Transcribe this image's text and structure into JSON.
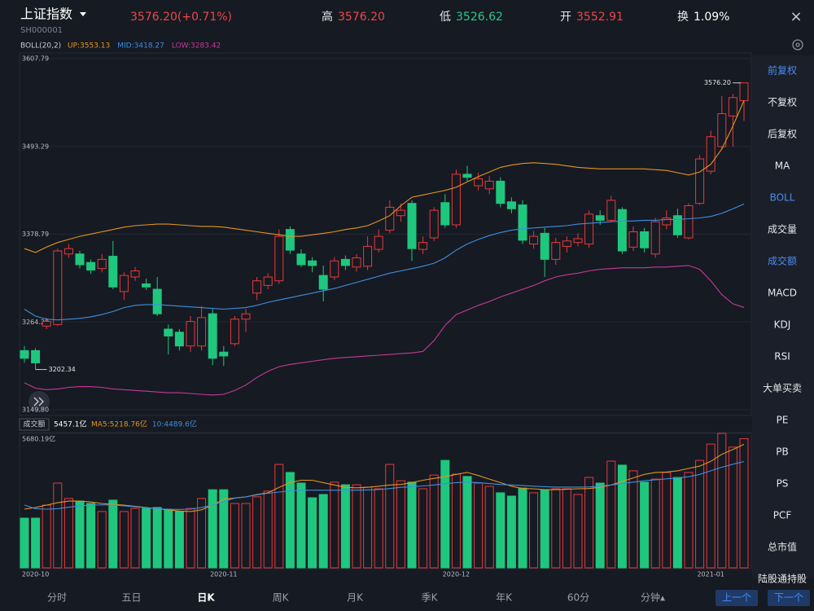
{
  "header": {
    "title": "上证指数",
    "code": "SH000001",
    "price": "3576.20(+0.71%)",
    "price_color": "#f0454a",
    "stats": [
      {
        "label": "高",
        "value": "3576.20",
        "color": "#f0454a"
      },
      {
        "label": "低",
        "value": "3526.62",
        "color": "#25c98a"
      },
      {
        "label": "开",
        "value": "3552.91",
        "color": "#f0454a"
      },
      {
        "label": "换",
        "value": "1.09%",
        "color": "#ffffff"
      }
    ]
  },
  "chart_data": [
    {
      "type": "candlestick",
      "indicator": "BOLL(20,2)",
      "up_color": "#e8393d",
      "down_color": "#1fc77e",
      "open": [
        3227,
        3227,
        3259,
        3261,
        3353,
        3353,
        3342,
        3334,
        3350,
        3304,
        3323,
        3314,
        3307,
        3255,
        3251,
        3233,
        3233,
        3275,
        3225,
        3236,
        3268,
        3302,
        3312,
        3318,
        3385,
        3353,
        3344,
        3325,
        3323,
        3346,
        3336,
        3337,
        3359,
        3384,
        3403,
        3419,
        3359,
        3374,
        3420,
        3391,
        3457,
        3442,
        3438,
        3448,
        3421,
        3417,
        3366,
        3380,
        3346,
        3363,
        3368,
        3366,
        3403,
        3397,
        3411,
        3362,
        3382,
        3353,
        3391,
        3403,
        3374,
        3419,
        3461,
        3493,
        3533,
        3552.91
      ],
      "high": [
        3233,
        3230,
        3270,
        3360,
        3366,
        3357,
        3346,
        3353,
        3370,
        3329,
        3336,
        3321,
        3323,
        3261,
        3255,
        3272,
        3285,
        3281,
        3233,
        3272,
        3281,
        3323,
        3328,
        3385,
        3389,
        3359,
        3349,
        3338,
        3349,
        3351,
        3353,
        3376,
        3385,
        3423,
        3419,
        3423,
        3376,
        3414,
        3431,
        3463,
        3468,
        3459,
        3455,
        3453,
        3427,
        3423,
        3383,
        3387,
        3374,
        3376,
        3380,
        3410,
        3410,
        3429,
        3414,
        3389,
        3387,
        3400,
        3410,
        3412,
        3419,
        3482,
        3514,
        3559,
        3562,
        3576.2
      ],
      "low": [
        3211,
        3202.34,
        3255,
        3259,
        3348,
        3334,
        3327,
        3329,
        3307,
        3293,
        3318,
        3306,
        3272,
        3222,
        3227,
        3225,
        3227,
        3208,
        3207,
        3233,
        3251,
        3293,
        3307,
        3314,
        3353,
        3336,
        3329,
        3291,
        3319,
        3332,
        3330,
        3332,
        3355,
        3380,
        3395,
        3344,
        3353,
        3370,
        3387,
        3387,
        3448,
        3436,
        3431,
        3414,
        3406,
        3366,
        3360,
        3323,
        3339,
        3355,
        3363,
        3361,
        3391,
        3395,
        3353,
        3357,
        3355,
        3348,
        3385,
        3374,
        3372,
        3417,
        3457,
        3489,
        3493,
        3526.62
      ],
      "close": [
        3217,
        3211,
        3265,
        3357,
        3360,
        3339,
        3332,
        3346,
        3310,
        3325,
        3331,
        3310,
        3275,
        3246,
        3233,
        3265,
        3270,
        3217,
        3220,
        3268,
        3275,
        3318,
        3323,
        3376,
        3358,
        3339,
        3338,
        3307,
        3344,
        3338,
        3348,
        3363,
        3376,
        3414,
        3410,
        3360,
        3368,
        3410,
        3391,
        3457,
        3453,
        3451,
        3448,
        3419,
        3412,
        3371,
        3376,
        3346,
        3368,
        3370,
        3373,
        3405,
        3397,
        3423,
        3357,
        3382,
        3361,
        3395,
        3400,
        3378,
        3416,
        3477,
        3506,
        3536,
        3557,
        3576.2
      ],
      "series": [
        {
          "label": "UP:3553.13",
          "color": "#e3951f",
          "values": [
            3360,
            3355,
            3362,
            3368,
            3372,
            3376,
            3379,
            3382,
            3385,
            3388,
            3390,
            3391,
            3392,
            3392,
            3391,
            3390,
            3389,
            3389,
            3388,
            3386,
            3384,
            3382,
            3380,
            3378,
            3376,
            3376,
            3378,
            3380,
            3382,
            3385,
            3387,
            3390,
            3396,
            3403,
            3416,
            3427,
            3430,
            3433,
            3436,
            3440,
            3447,
            3454,
            3460,
            3466,
            3469,
            3471,
            3472,
            3471,
            3470,
            3468,
            3466,
            3465,
            3464,
            3464,
            3464,
            3464,
            3464,
            3463,
            3462,
            3459,
            3456,
            3460,
            3470,
            3490,
            3520,
            3553.13
          ]
        },
        {
          "label": "MID:3418.27",
          "color": "#3d8fe0",
          "values": [
            3281,
            3272,
            3268,
            3267,
            3268,
            3269,
            3271,
            3274,
            3278,
            3283,
            3286,
            3287,
            3287,
            3286,
            3285,
            3284,
            3283,
            3282,
            3281,
            3282,
            3283,
            3286,
            3290,
            3293,
            3296,
            3299,
            3302,
            3305,
            3308,
            3312,
            3316,
            3320,
            3324,
            3328,
            3331,
            3334,
            3337,
            3341,
            3348,
            3358,
            3366,
            3372,
            3377,
            3381,
            3384,
            3386,
            3387,
            3388,
            3389,
            3390,
            3392,
            3393,
            3394,
            3395,
            3396,
            3396,
            3397,
            3397,
            3398,
            3398,
            3399,
            3400,
            3402,
            3406,
            3412,
            3418.27
          ]
        },
        {
          "label": "LOW:3283.42",
          "color": "#c63a9a",
          "values": [
            3185,
            3178,
            3176,
            3177,
            3179,
            3180,
            3180,
            3179,
            3177,
            3176,
            3175,
            3174,
            3173,
            3172,
            3172,
            3171,
            3170,
            3169,
            3170,
            3175,
            3182,
            3192,
            3200,
            3206,
            3209,
            3211,
            3213,
            3215,
            3217,
            3218,
            3219,
            3220,
            3221,
            3222,
            3223,
            3224,
            3226,
            3240,
            3260,
            3274,
            3280,
            3286,
            3291,
            3297,
            3302,
            3307,
            3312,
            3318,
            3323,
            3326,
            3328,
            3331,
            3333,
            3334,
            3335,
            3335,
            3335,
            3336,
            3336,
            3337,
            3338,
            3333,
            3318,
            3300,
            3288,
            3283.42
          ]
        }
      ],
      "ylim": [
        3149.8,
        3607.79
      ],
      "yticks": [
        3607.79,
        3493.29,
        3378.79,
        3264.29,
        {
          "value": 3149.8,
          "label": "3149.80"
        }
      ],
      "grid": true,
      "annotations": {
        "high_label": "3576.20",
        "low_label": "3202.34"
      }
    },
    {
      "type": "bar",
      "title": "成交额",
      "value_label": "5457.1亿",
      "categories": [
        null,
        "2020-10",
        null,
        null,
        null,
        null,
        null,
        null,
        null,
        null,
        null,
        null,
        null,
        null,
        null,
        null,
        null,
        null,
        "2020-11",
        null,
        null,
        null,
        null,
        null,
        null,
        null,
        null,
        null,
        null,
        null,
        null,
        null,
        null,
        null,
        null,
        null,
        null,
        null,
        null,
        "2020-12",
        null,
        null,
        null,
        null,
        null,
        null,
        null,
        null,
        null,
        null,
        null,
        null,
        null,
        null,
        null,
        null,
        null,
        null,
        null,
        null,
        null,
        null,
        "2021-01",
        null,
        null,
        null
      ],
      "values": [
        2100,
        2100,
        2650,
        3580,
        2930,
        2820,
        2720,
        2380,
        2860,
        2380,
        2510,
        2510,
        2550,
        2440,
        2380,
        2510,
        2930,
        3300,
        3300,
        2720,
        2720,
        3000,
        3240,
        4370,
        4030,
        3580,
        2960,
        3100,
        3620,
        3510,
        3510,
        3410,
        3340,
        4370,
        3680,
        3620,
        3340,
        3920,
        4540,
        3960,
        3860,
        3580,
        3440,
        3170,
        3030,
        3370,
        3170,
        3300,
        3340,
        3340,
        3100,
        3820,
        3580,
        4510,
        4340,
        4100,
        3620,
        3750,
        4030,
        3820,
        4030,
        4540,
        5230,
        5680.19,
        5100,
        5457.1
      ],
      "series": [
        {
          "label": "MA5:5218.76亿",
          "color": "#e3951f",
          "values": [
            2480,
            2550,
            2650,
            2750,
            2820,
            2820,
            2780,
            2720,
            2680,
            2650,
            2600,
            2550,
            2500,
            2450,
            2400,
            2380,
            2450,
            2650,
            2900,
            2950,
            3000,
            3100,
            3170,
            3400,
            3600,
            3700,
            3700,
            3600,
            3500,
            3400,
            3380,
            3400,
            3450,
            3500,
            3520,
            3600,
            3700,
            3780,
            3850,
            3950,
            4030,
            3900,
            3750,
            3600,
            3450,
            3350,
            3340,
            3300,
            3300,
            3320,
            3340,
            3350,
            3400,
            3500,
            3650,
            3800,
            3950,
            4030,
            4050,
            4100,
            4200,
            4300,
            4500,
            4800,
            5000,
            5218.76
          ]
        },
        {
          "label": "10:4489.6亿",
          "color": "#3d8fe0",
          "values": [
            2650,
            2500,
            2480,
            2500,
            2560,
            2620,
            2650,
            2660,
            2650,
            2620,
            2580,
            2540,
            2500,
            2480,
            2470,
            2480,
            2550,
            2650,
            2800,
            2950,
            3000,
            3080,
            3150,
            3200,
            3250,
            3280,
            3280,
            3280,
            3280,
            3280,
            3280,
            3290,
            3310,
            3350,
            3400,
            3430,
            3460,
            3500,
            3550,
            3600,
            3620,
            3600,
            3560,
            3520,
            3500,
            3480,
            3450,
            3430,
            3410,
            3410,
            3410,
            3420,
            3450,
            3500,
            3560,
            3620,
            3680,
            3720,
            3760,
            3800,
            3850,
            3950,
            4100,
            4250,
            4380,
            4489.6
          ]
        }
      ],
      "ylim": [
        0,
        5680.19
      ],
      "yticks": [
        {
          "value": 5680.19,
          "label": "5680.19亿"
        }
      ]
    }
  ],
  "side_menu": {
    "items": [
      "前复权",
      "不复权",
      "后复权",
      "MA",
      "BOLL",
      "成交量",
      "成交额",
      "MACD",
      "KDJ",
      "RSI",
      "大单买卖",
      "PE",
      "PB",
      "PS",
      "PCF",
      "总市值",
      "陆股通持股"
    ],
    "active": [
      0,
      4,
      6
    ],
    "active_color": "#4a8cf0"
  },
  "bottom_bar": {
    "tabs": [
      "分时",
      "五日",
      "日K",
      "周K",
      "月K",
      "季K",
      "年K",
      "60分",
      "分钟▴"
    ],
    "active_tab": 2,
    "buttons": [
      "上一个",
      "下一个"
    ]
  },
  "close": "×"
}
